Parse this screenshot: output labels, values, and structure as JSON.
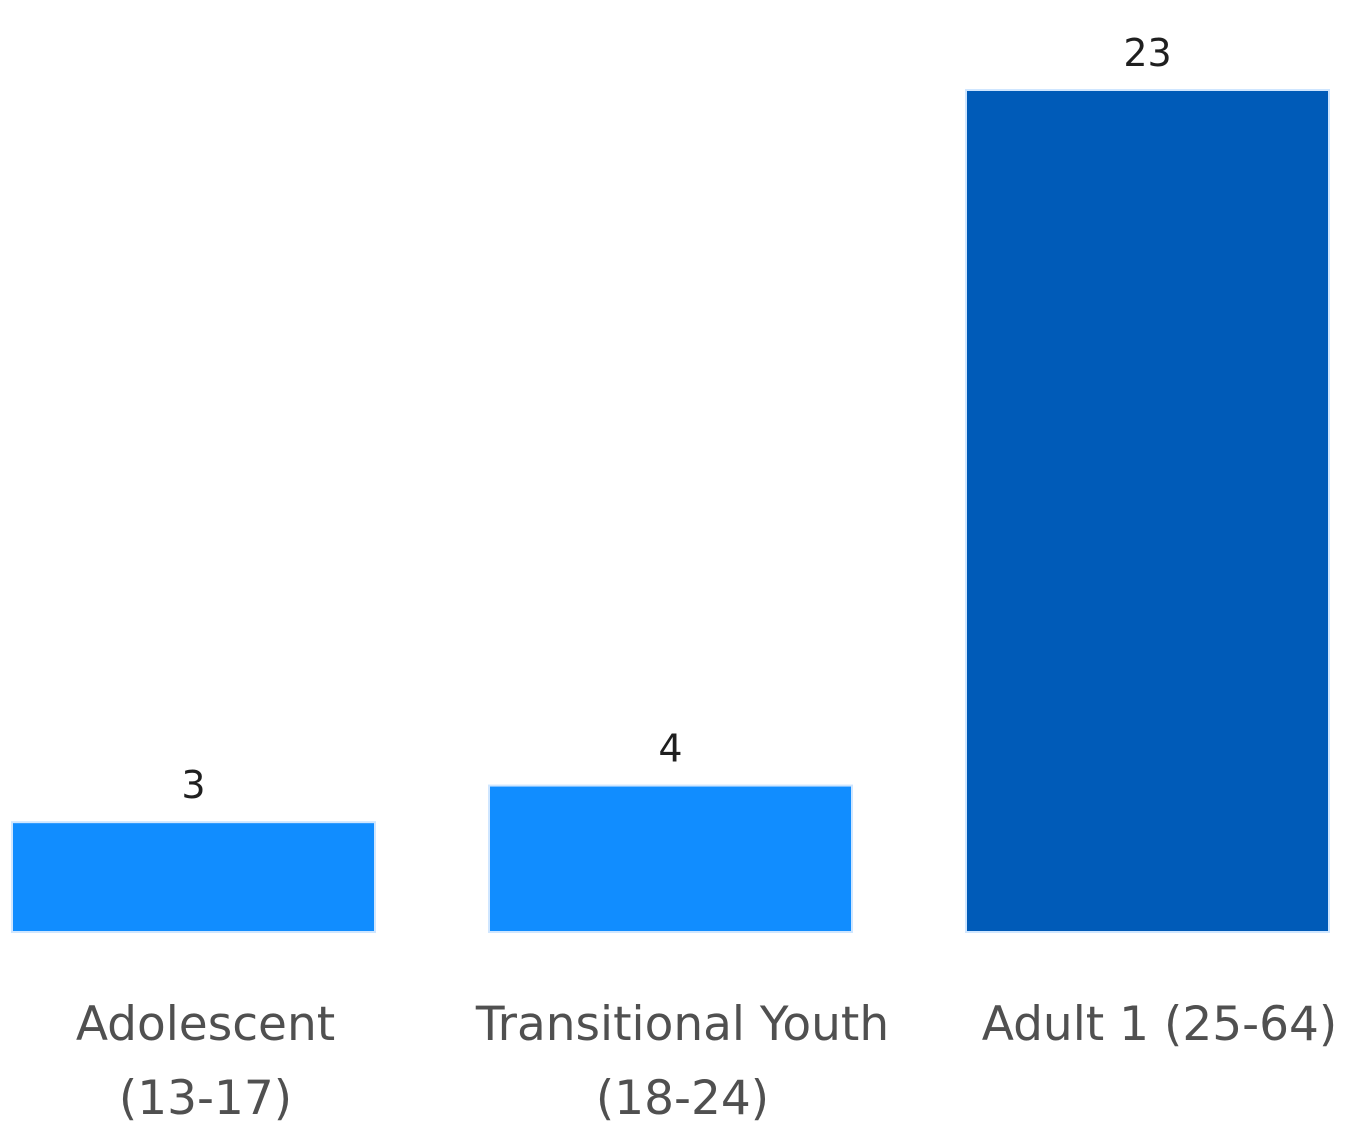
{
  "chart_data": {
    "type": "bar",
    "categories": [
      [
        "Adolescent",
        "(13-17)"
      ],
      [
        "Transitional Youth",
        "(18-24)"
      ],
      [
        "Adult 1 (25-64)"
      ]
    ],
    "values": [
      3,
      4,
      23
    ],
    "data_labels": [
      "3",
      "4",
      "23"
    ],
    "colors": [
      "#118dff",
      "#118dff",
      "#005bb8"
    ],
    "title": "",
    "xlabel": "",
    "ylabel": "",
    "ylim": [
      0,
      23
    ],
    "grid": false,
    "legend": "none"
  }
}
